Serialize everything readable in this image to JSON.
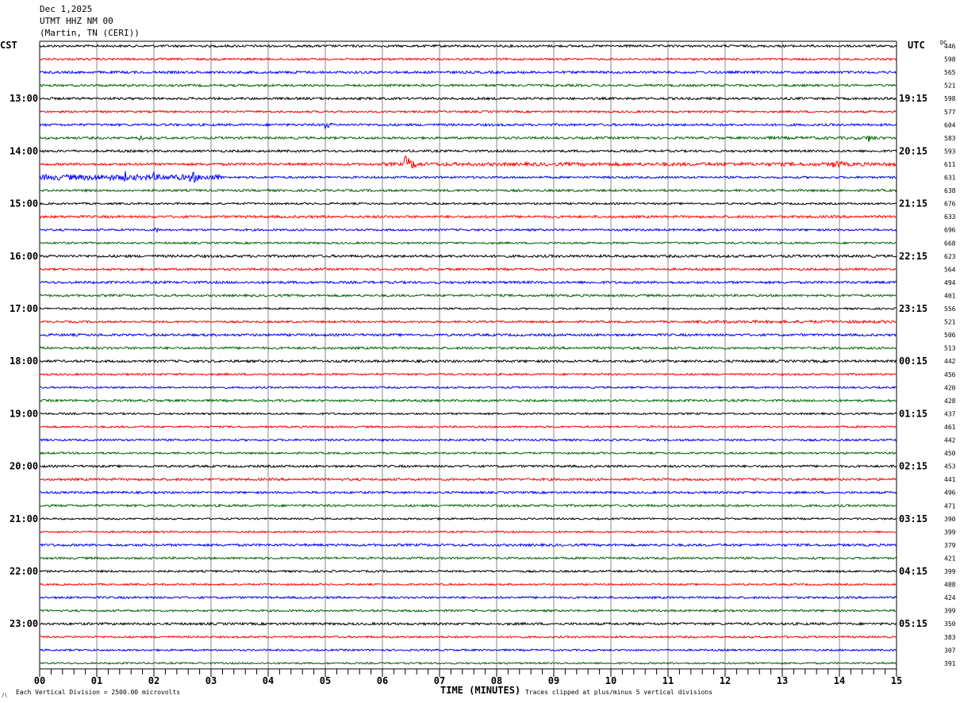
{
  "header": {
    "date": "Dec 1,2025",
    "station": "UTMT HHZ NM 00",
    "location": "(Martin, TN (CERI))"
  },
  "left_axis_title": "CST",
  "right_axis_title": "UTC",
  "dc_title": "DC",
  "footer": {
    "scale_note": "Each Vertical Division = 2500.00 microvolts",
    "xlabel": "TIME (MINUTES)",
    "clip_note": "Traces clipped at plus/minus 5 vertical divisions",
    "corner_mark": "/\\"
  },
  "chart_data": {
    "type": "line",
    "title": "UTMT HHZ NM 00 helicorder",
    "xlabel": "TIME (MINUTES)",
    "xlim": [
      0,
      15
    ],
    "x_ticks": [
      "00",
      "01",
      "02",
      "03",
      "04",
      "05",
      "06",
      "07",
      "08",
      "09",
      "10",
      "11",
      "12",
      "13",
      "14",
      "15"
    ],
    "trace_colors": [
      "#000000",
      "#ff0000",
      "#0000ff",
      "#006400"
    ],
    "left_hour_labels": [
      "13:00",
      "14:00",
      "15:00",
      "16:00",
      "17:00",
      "18:00",
      "19:00",
      "20:00",
      "21:00",
      "22:00",
      "23:00"
    ],
    "right_hour_labels": [
      "19:15",
      "20:15",
      "21:15",
      "22:15",
      "23:15",
      "00:15",
      "01:15",
      "02:15",
      "03:15",
      "04:15",
      "05:15"
    ],
    "dc_values": [
      "446",
      "598",
      "565",
      "521",
      "598",
      "577",
      "604",
      "583",
      "593",
      "611",
      "631",
      "638",
      "676",
      "633",
      "696",
      "668",
      "623",
      "564",
      "494",
      "401",
      "556",
      "521",
      "506",
      "513",
      "442",
      "456",
      "420",
      "428",
      "437",
      "461",
      "442",
      "450",
      "453",
      "441",
      "496",
      "471",
      "390",
      "399",
      "379",
      "421",
      "399",
      "488",
      "424",
      "399",
      "350",
      "383",
      "307",
      "391"
    ],
    "events": [
      {
        "trace": 2,
        "minute": 4.45,
        "amplitude": 3,
        "duration": 0.3
      },
      {
        "trace": 6,
        "minute": 5.0,
        "amplitude": 6,
        "duration": 0.35
      },
      {
        "trace": 7,
        "minute": 1.75,
        "amplitude": 3.5,
        "duration": 0.35
      },
      {
        "trace": 7,
        "minute": 14.5,
        "amplitude": 6,
        "duration": 0.35
      },
      {
        "trace": 9,
        "minute": 6.4,
        "amplitude": 11,
        "duration": 0.6
      },
      {
        "trace": 9,
        "minute": 13.9,
        "amplitude": 6,
        "duration": 0.8
      },
      {
        "trace": 10,
        "minute": 1.5,
        "amplitude": 8,
        "duration": 0.2
      },
      {
        "trace": 10,
        "minute": 2.0,
        "amplitude": 7,
        "duration": 0.2
      },
      {
        "trace": 10,
        "minute": 2.65,
        "amplitude": 10,
        "duration": 0.4
      },
      {
        "trace": 14,
        "minute": 2.0,
        "amplitude": 4,
        "duration": 0.4
      }
    ],
    "noisy_segments": [
      {
        "trace": 9,
        "from": 6.0,
        "to": 15,
        "amplitude": 2.2
      },
      {
        "trace": 10,
        "from": 0,
        "to": 3.2,
        "amplitude": 3.5
      },
      {
        "trace": 21,
        "from": 11.5,
        "to": 15,
        "amplitude": 1.8
      },
      {
        "trace": 7,
        "from": 12.5,
        "to": 14.8,
        "amplitude": 1.8
      },
      {
        "trace": 22,
        "from": 0,
        "to": 1.2,
        "amplitude": 1.6
      }
    ]
  }
}
